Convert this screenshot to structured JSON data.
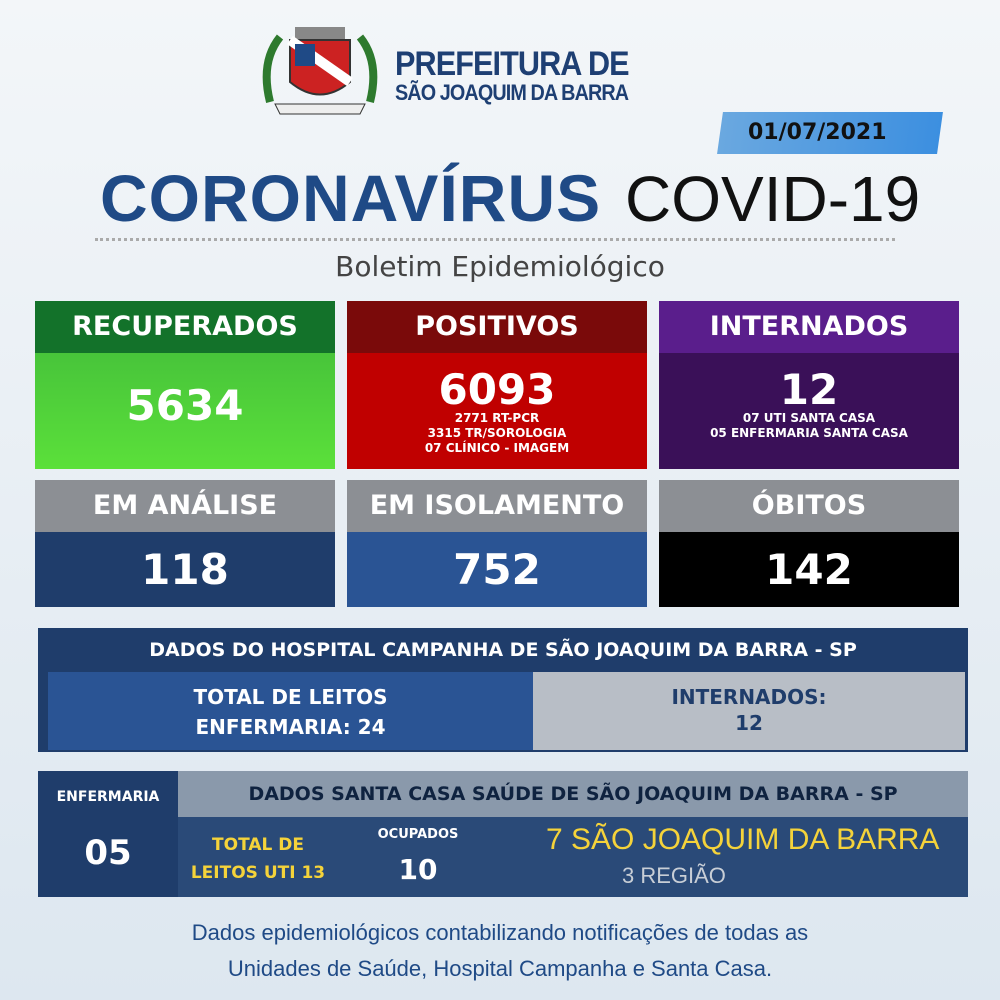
{
  "header": {
    "logo_title": "PREFEITURA DE",
    "logo_subtitle": "SÃO JOAQUIM DA BARRA",
    "date": "01/07/2021",
    "title_main": "CORONAVÍRUS",
    "title_sub": "COVID-19",
    "subtitle": "Boletim Epidemiológico"
  },
  "cards": [
    {
      "label": "RECUPERADOS",
      "value": "5634",
      "details": []
    },
    {
      "label": "POSITIVOS",
      "value": "6093",
      "details": [
        "2771 RT-PCR",
        "3315 TR/SOROLOGIA",
        "07 CLÍNICO - IMAGEM"
      ]
    },
    {
      "label": "INTERNADOS",
      "value": "12",
      "details": [
        "07 UTI SANTA CASA",
        "05 ENFERMARIA SANTA CASA"
      ]
    },
    {
      "label": "EM ANÁLISE",
      "value": "118"
    },
    {
      "label": "EM ISOLAMENTO",
      "value": "752"
    },
    {
      "label": "ÓBITOS",
      "value": "142"
    }
  ],
  "hospital": {
    "title": "DADOS DO HOSPITAL CAMPANHA DE SÃO JOAQUIM DA BARRA - SP",
    "beds_line1": "TOTAL DE LEITOS",
    "beds_line2": "ENFERMARIA: 24",
    "intern_label": "INTERNADOS:",
    "intern_value": "12"
  },
  "santa_casa": {
    "enf_label": "ENFERMARIA",
    "enf_value": "05",
    "title": "DADOS SANTA CASA SAÚDE DE SÃO JOAQUIM DA BARRA - SP",
    "uti_line1": "TOTAL DE",
    "uti_line2": "LEITOS UTI 13",
    "ocupados_label": "OCUPADOS",
    "ocupados_value": "10",
    "city": "7 SÃO JOAQUIM DA BARRA",
    "region": "3 REGIÃO"
  },
  "footer": {
    "line1": "Dados epidemiológicos contabilizando notificações de todas as",
    "line2": "Unidades de Saúde, Hospital Campanha e Santa Casa."
  }
}
